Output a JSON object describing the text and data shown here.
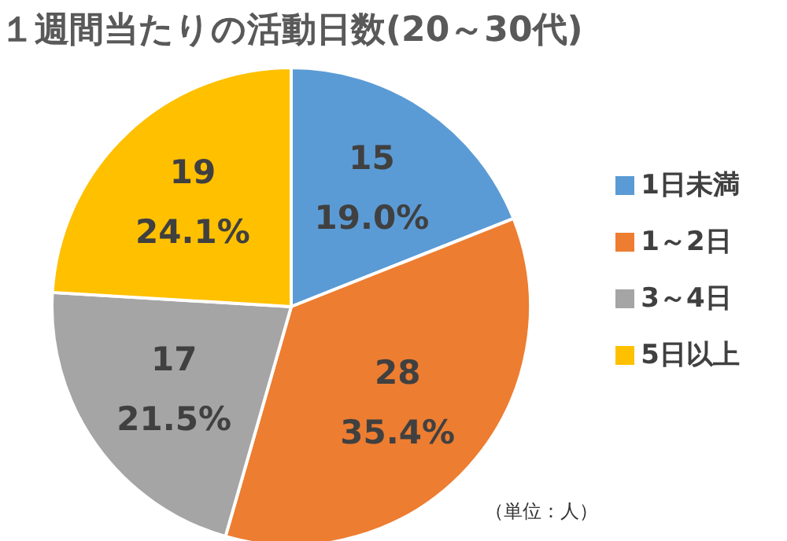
{
  "chart_data": {
    "type": "pie",
    "title": "１週間当たりの活動日数(20～30代)",
    "categories": [
      "1日未満",
      "1～2日",
      "3～4日",
      "5日以上"
    ],
    "values": [
      15,
      28,
      17,
      19
    ],
    "value_labels": [
      "15\n19.0%",
      "28\n35.4%",
      "17\n21.5%",
      "19\n24.1%"
    ],
    "colors": [
      "#5b9bd5",
      "#ed7d31",
      "#a5a5a5",
      "#ffc000"
    ],
    "legend": "right",
    "annotations": [
      "（単位：人）"
    ]
  }
}
